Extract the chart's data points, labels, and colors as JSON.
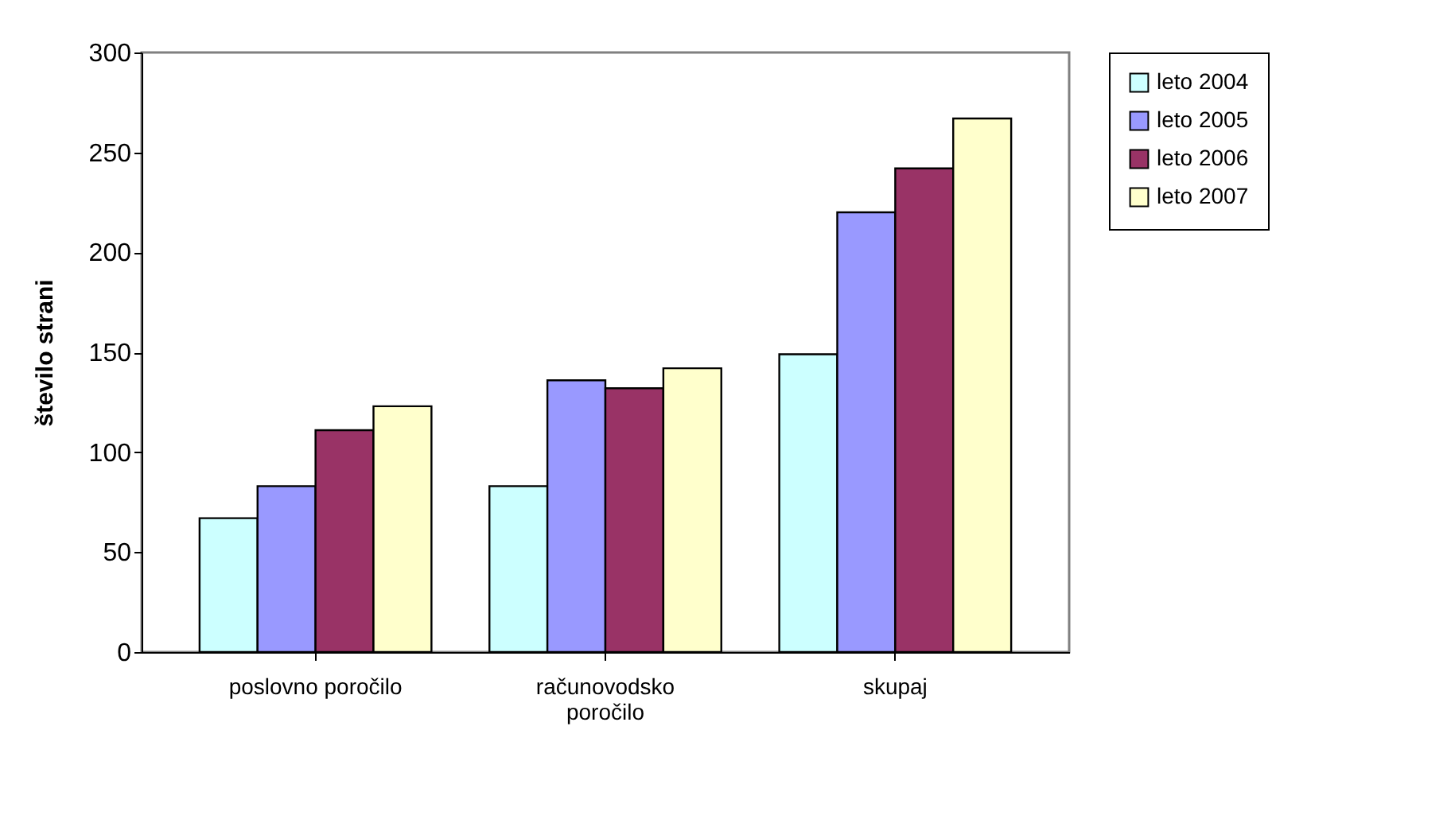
{
  "chart_data": {
    "type": "bar",
    "ylabel": "število strani",
    "categories": [
      "poslovno poročilo",
      "računovodsko poročilo",
      "skupaj"
    ],
    "series": [
      {
        "name": "leto 2004",
        "color": "#ccffff",
        "values": [
          67,
          83,
          149
        ]
      },
      {
        "name": "leto 2005",
        "color": "#9999ff",
        "values": [
          83,
          136,
          220
        ]
      },
      {
        "name": "leto 2006",
        "color": "#993366",
        "values": [
          111,
          132,
          242
        ]
      },
      {
        "name": "leto 2007",
        "color": "#ffffcc",
        "values": [
          123,
          142,
          267
        ]
      }
    ],
    "ylim": [
      0,
      300
    ],
    "yticks": [
      0,
      50,
      100,
      150,
      200,
      250,
      300
    ],
    "grid": false,
    "legend": "right"
  }
}
